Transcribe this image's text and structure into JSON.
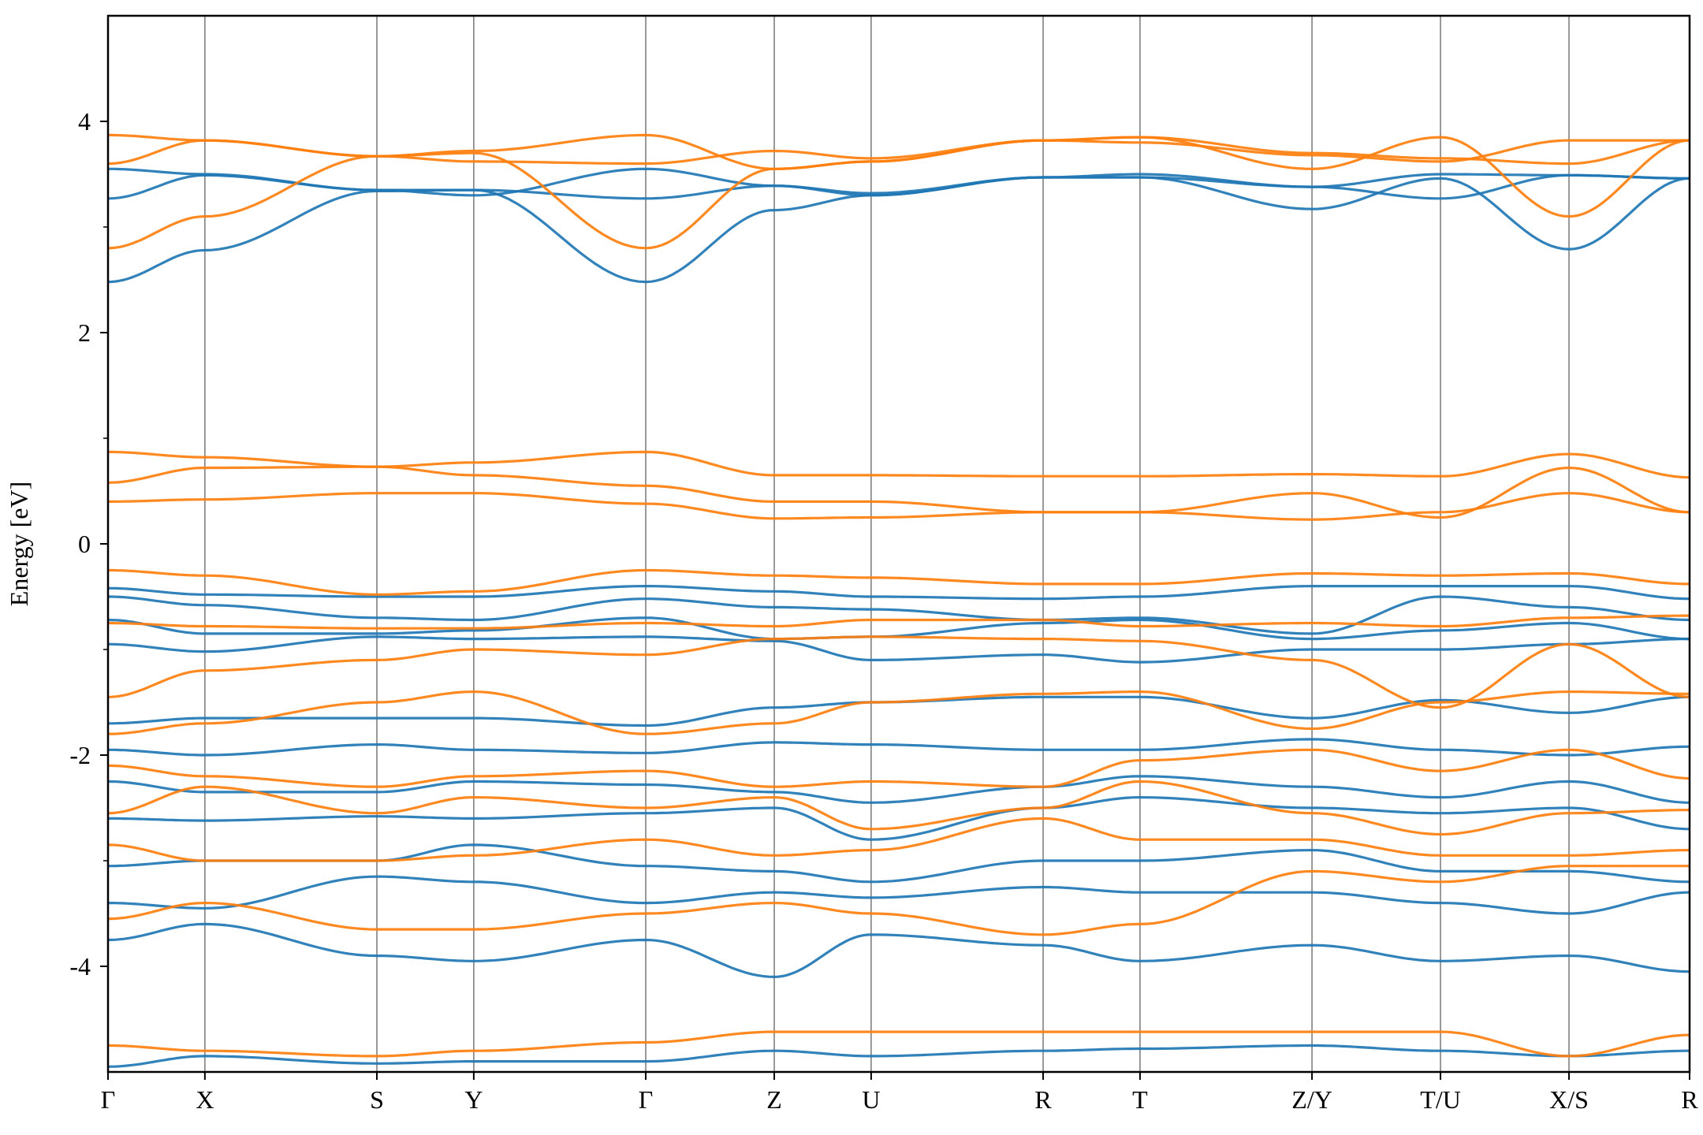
{
  "chart_data": {
    "type": "line",
    "title": "",
    "xlabel": "",
    "ylabel": "Energy [eV]",
    "ylim": [
      -5,
      5
    ],
    "yticks": [
      -4,
      -2,
      0,
      2,
      4
    ],
    "ytick_labels": [
      "-4",
      "-2",
      "0",
      "2",
      "4"
    ],
    "yminor": [
      -3,
      -1,
      1,
      3
    ],
    "grid": "vertical lines at high-symmetry points",
    "legend": "none",
    "colors": {
      "spin_up": "#1f77b4",
      "spin_down": "#ff7f0e",
      "gridline": "#808080"
    },
    "kpath": {
      "labels": [
        "Γ",
        "X",
        "S",
        "Y",
        "Γ",
        "Z",
        "U",
        "R",
        "T",
        "Z/Y",
        "T/U",
        "X/S",
        "R"
      ],
      "positions": [
        0,
        0.49,
        1.36,
        1.85,
        2.72,
        3.37,
        3.86,
        4.73,
        5.22,
        6.09,
        6.74,
        7.39,
        8.0
      ],
      "segment_breaks": [
        6.09,
        6.74,
        7.39
      ]
    },
    "series": [
      {
        "color": "#1f77b4",
        "energy_at_labels": [
          [
            2.48,
            2.78,
            3.34,
            3.35,
            2.48,
            3.16,
            3.3,
            3.47,
            3.47,
            3.17,
            3.46,
            2.79,
            3.46
          ],
          [
            3.27,
            3.49,
            3.35,
            3.35,
            3.27,
            3.39,
            3.3,
            3.47,
            3.5,
            3.38,
            3.5,
            3.49,
            3.46
          ],
          [
            3.55,
            3.5,
            3.35,
            3.3,
            3.55,
            3.39,
            3.32,
            3.47,
            3.47,
            3.38,
            3.27,
            3.49,
            3.46
          ],
          [
            -0.42,
            -0.48,
            -0.5,
            -0.5,
            -0.4,
            -0.45,
            -0.5,
            -0.52,
            -0.5,
            -0.4,
            -0.4,
            -0.4,
            -0.52
          ],
          [
            -0.5,
            -0.58,
            -0.7,
            -0.72,
            -0.52,
            -0.6,
            -0.62,
            -0.72,
            -0.7,
            -0.85,
            -0.5,
            -0.6,
            -0.72
          ],
          [
            -0.72,
            -0.85,
            -0.85,
            -0.82,
            -0.7,
            -0.9,
            -0.88,
            -0.75,
            -0.72,
            -0.9,
            -0.82,
            -0.75,
            -0.9
          ],
          [
            -0.95,
            -1.02,
            -0.88,
            -0.9,
            -0.88,
            -0.92,
            -1.1,
            -1.05,
            -1.12,
            -1.0,
            -1.0,
            -0.95,
            -0.9
          ],
          [
            -1.7,
            -1.65,
            -1.65,
            -1.65,
            -1.72,
            -1.55,
            -1.5,
            -1.45,
            -1.45,
            -1.65,
            -1.48,
            -1.6,
            -1.45
          ],
          [
            -1.95,
            -2.0,
            -1.9,
            -1.95,
            -1.98,
            -1.88,
            -1.9,
            -1.95,
            -1.95,
            -1.85,
            -1.95,
            -2.0,
            -1.92
          ],
          [
            -2.25,
            -2.35,
            -2.35,
            -2.25,
            -2.28,
            -2.35,
            -2.45,
            -2.3,
            -2.2,
            -2.3,
            -2.4,
            -2.25,
            -2.45
          ],
          [
            -2.6,
            -2.62,
            -2.58,
            -2.6,
            -2.55,
            -2.5,
            -2.8,
            -2.5,
            -2.4,
            -2.5,
            -2.55,
            -2.5,
            -2.7
          ],
          [
            -3.05,
            -3.0,
            -3.0,
            -2.85,
            -3.05,
            -3.1,
            -3.2,
            -3.0,
            -3.0,
            -2.9,
            -3.1,
            -3.1,
            -3.2
          ],
          [
            -3.4,
            -3.45,
            -3.15,
            -3.2,
            -3.4,
            -3.3,
            -3.35,
            -3.25,
            -3.3,
            -3.3,
            -3.4,
            -3.5,
            -3.3
          ],
          [
            -3.75,
            -3.6,
            -3.9,
            -3.95,
            -3.75,
            -4.1,
            -3.7,
            -3.8,
            -3.95,
            -3.8,
            -3.95,
            -3.9,
            -4.05
          ],
          [
            -4.95,
            -4.85,
            -4.92,
            -4.9,
            -4.9,
            -4.8,
            -4.85,
            -4.8,
            -4.78,
            -4.75,
            -4.8,
            -4.85,
            -4.8
          ]
        ]
      },
      {
        "color": "#ff7f0e",
        "energy_at_labels": [
          [
            2.8,
            3.1,
            3.67,
            3.7,
            2.8,
            3.55,
            3.62,
            3.82,
            3.85,
            3.55,
            3.85,
            3.1,
            3.82
          ],
          [
            3.6,
            3.82,
            3.67,
            3.62,
            3.6,
            3.72,
            3.65,
            3.82,
            3.8,
            3.68,
            3.62,
            3.82,
            3.82
          ],
          [
            3.87,
            3.82,
            3.67,
            3.72,
            3.87,
            3.55,
            3.62,
            3.82,
            3.85,
            3.7,
            3.65,
            3.6,
            3.82
          ],
          [
            0.87,
            0.82,
            0.73,
            0.77,
            0.87,
            0.65,
            0.65,
            0.64,
            0.64,
            0.66,
            0.64,
            0.85,
            0.63
          ],
          [
            0.58,
            0.72,
            0.73,
            0.65,
            0.55,
            0.4,
            0.4,
            0.3,
            0.3,
            0.23,
            0.3,
            0.48,
            0.3
          ],
          [
            0.4,
            0.42,
            0.48,
            0.48,
            0.38,
            0.24,
            0.25,
            0.3,
            0.3,
            0.48,
            0.25,
            0.72,
            0.3
          ],
          [
            -0.25,
            -0.3,
            -0.48,
            -0.45,
            -0.25,
            -0.3,
            -0.32,
            -0.38,
            -0.38,
            -0.28,
            -0.3,
            -0.28,
            -0.38
          ],
          [
            -0.75,
            -0.78,
            -0.8,
            -0.8,
            -0.75,
            -0.78,
            -0.72,
            -0.72,
            -0.78,
            -0.75,
            -0.78,
            -0.7,
            -0.68
          ],
          [
            -1.45,
            -1.2,
            -1.1,
            -1.0,
            -1.05,
            -0.9,
            -0.88,
            -0.9,
            -0.92,
            -1.1,
            -1.55,
            -0.95,
            -1.45
          ],
          [
            -1.8,
            -1.7,
            -1.5,
            -1.4,
            -1.8,
            -1.7,
            -1.5,
            -1.42,
            -1.4,
            -1.75,
            -1.5,
            -1.4,
            -1.42
          ],
          [
            -2.1,
            -2.2,
            -2.3,
            -2.2,
            -2.15,
            -2.3,
            -2.25,
            -2.3,
            -2.05,
            -1.95,
            -2.15,
            -1.95,
            -2.22
          ],
          [
            -2.55,
            -2.3,
            -2.55,
            -2.4,
            -2.5,
            -2.4,
            -2.7,
            -2.5,
            -2.25,
            -2.55,
            -2.75,
            -2.55,
            -2.52
          ],
          [
            -2.85,
            -3.0,
            -3.0,
            -2.95,
            -2.8,
            -2.95,
            -2.9,
            -2.6,
            -2.8,
            -2.8,
            -2.95,
            -2.95,
            -2.9
          ],
          [
            -3.55,
            -3.4,
            -3.65,
            -3.65,
            -3.5,
            -3.4,
            -3.5,
            -3.7,
            -3.6,
            -3.1,
            -3.2,
            -3.05,
            -3.05
          ],
          [
            -4.75,
            -4.8,
            -4.85,
            -4.8,
            -4.72,
            -4.62,
            -4.62,
            -4.62,
            -4.62,
            -4.62,
            -4.62,
            -4.85,
            -4.65
          ]
        ]
      }
    ]
  }
}
